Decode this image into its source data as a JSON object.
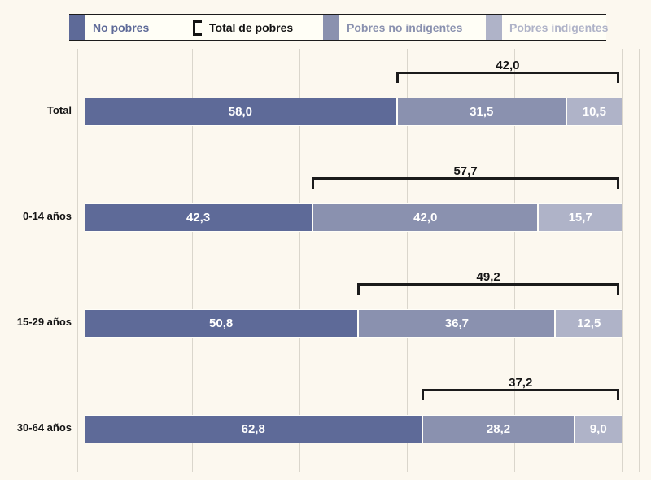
{
  "page": {
    "background": "#FCF8EF"
  },
  "legend": {
    "items": [
      {
        "label": "No pobres",
        "color": "#5E6A98",
        "swatch": "square"
      },
      {
        "label": "Total de pobres",
        "color": "#141414",
        "swatch": "bracket"
      },
      {
        "label": "Pobres no indigentes",
        "color": "#8A91AF",
        "swatch": "square"
      },
      {
        "label": "Pobres indigentes",
        "color": "#AFB3C8",
        "swatch": "square"
      }
    ]
  },
  "chart_data": {
    "type": "bar",
    "orientation": "horizontal-stacked",
    "unit": "percent",
    "xlim": [
      0,
      100
    ],
    "grid": {
      "vertical": true,
      "interval_percent": 20
    },
    "legend_position": "top",
    "categories": [
      "Total",
      "0-14 años",
      "15-29 años",
      "30-64 años"
    ],
    "series": [
      {
        "name": "No pobres",
        "color": "#5E6A98",
        "values": [
          58.0,
          42.3,
          50.8,
          62.8
        ],
        "labels": [
          "58,0",
          "42,3",
          "50,8",
          "62,8"
        ]
      },
      {
        "name": "Pobres no indigentes",
        "color": "#8A91AF",
        "values": [
          31.5,
          42.0,
          36.7,
          28.2
        ],
        "labels": [
          "31,5",
          "42,0",
          "36,7",
          "28,2"
        ]
      },
      {
        "name": "Pobres indigentes",
        "color": "#AFB3C8",
        "values": [
          10.5,
          15.7,
          12.5,
          9.0
        ],
        "labels": [
          "10,5",
          "15,7",
          "12,5",
          "9,0"
        ]
      }
    ],
    "brackets": {
      "name": "Total de pobres",
      "values": [
        42.0,
        57.7,
        49.2,
        37.2
      ],
      "labels": [
        "42,0",
        "57,7",
        "49,2",
        "37,2"
      ]
    }
  }
}
